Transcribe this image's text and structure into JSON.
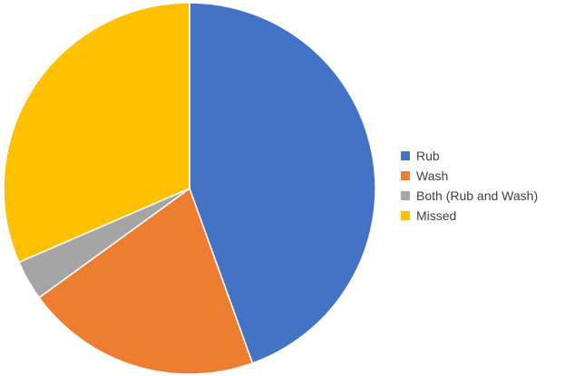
{
  "chart_data": {
    "type": "pie",
    "title": "",
    "legend_position": "right",
    "slices": [
      {
        "label": "Rub",
        "value": 44.5,
        "color": "#4472C4"
      },
      {
        "label": "Wash",
        "value": 20.5,
        "color": "#ED7D31"
      },
      {
        "label": "Both (Rub and Wash)",
        "value": 3.5,
        "color": "#A5A5A5"
      },
      {
        "label": "Missed",
        "value": 31.5,
        "color": "#FFC000"
      }
    ]
  }
}
